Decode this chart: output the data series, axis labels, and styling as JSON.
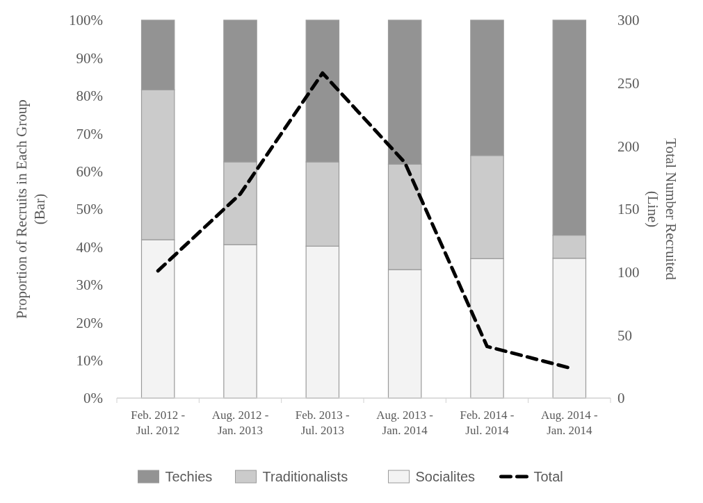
{
  "chart_data": {
    "type": "bar",
    "stacked": true,
    "categories": [
      "Feb. 2012 - Jul. 2012",
      "Aug. 2012 - Jan. 2013",
      "Feb. 2013 - Jul. 2013",
      "Aug. 2013 - Jan. 2014",
      "Feb. 2014 - Jul. 2014",
      "Aug. 2014 - Jan. 2014"
    ],
    "series": [
      {
        "name": "Socialites",
        "color": "#f3f3f3",
        "values": [
          41.9,
          40.6,
          40.2,
          34.0,
          36.9,
          37.0
        ]
      },
      {
        "name": "Traditionalists",
        "color": "#cbcbcb",
        "values": [
          39.7,
          21.9,
          22.3,
          27.9,
          27.3,
          6.1
        ]
      },
      {
        "name": "Techies",
        "color": "#939393",
        "values": [
          18.4,
          37.5,
          37.5,
          38.1,
          35.8,
          56.9
        ]
      },
      {
        "name": "Total",
        "type": "line",
        "axis": "y2",
        "color": "#000000",
        "line_style": "dashed",
        "values": [
          101,
          162,
          258,
          187,
          41,
          24
        ]
      }
    ],
    "ylabel": "Proportion of Recruits in Each Group (Bar)",
    "y2label": "Total Number Recruited (Line)",
    "ylim": [
      0,
      100
    ],
    "yticks": [
      {
        "value": 0,
        "label": "0%"
      },
      {
        "value": 10,
        "label": "10%"
      },
      {
        "value": 20,
        "label": "20%"
      },
      {
        "value": 30,
        "label": "30%"
      },
      {
        "value": 40,
        "label": "40%"
      },
      {
        "value": 50,
        "label": "50%"
      },
      {
        "value": 60,
        "label": "60%"
      },
      {
        "value": 70,
        "label": "70%"
      },
      {
        "value": 80,
        "label": "80%"
      },
      {
        "value": 90,
        "label": "90%"
      },
      {
        "value": 100,
        "label": "100%"
      }
    ],
    "y2lim": [
      0,
      300
    ],
    "y2ticks": [
      0,
      50,
      100,
      150,
      200,
      250,
      300
    ],
    "legend": "bottom",
    "grid": false
  }
}
